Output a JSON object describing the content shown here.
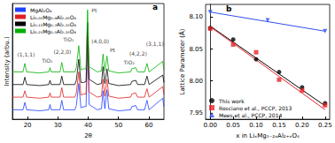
{
  "chart_data": [
    {
      "type": "line",
      "panel_label": "a",
      "x_label": "2θ",
      "y_label": "Intensity (arbu.)",
      "xlim": [
        15,
        65
      ],
      "xticks": [
        20,
        30,
        40,
        50,
        60
      ],
      "ylim": [
        0,
        110
      ],
      "tick_labels": "x",
      "grid": false,
      "legend": "upper left",
      "x": [
        15,
        18.5,
        19.1,
        19.7,
        24,
        27.0,
        27.4,
        27.8,
        30.7,
        31.3,
        31.9,
        35.6,
        36.1,
        36.9,
        37.6,
        38.6,
        39.3,
        39.8,
        40.3,
        43,
        44.4,
        44.9,
        45.5,
        46.2,
        46.8,
        50,
        54.0,
        54.4,
        55.7,
        56.3,
        58.6,
        59.4,
        60.1,
        64.6,
        65
      ],
      "series": [
        {
          "name": "MgAl₂O₄",
          "color": "#2040ff",
          "values": [
            9,
            9,
            16,
            9,
            8,
            9,
            14,
            9,
            9,
            18,
            9,
            9,
            13,
            34,
            11,
            12,
            12,
            70,
            14,
            9,
            10,
            27,
            10,
            28,
            10,
            8,
            9,
            12,
            13,
            9,
            9,
            18,
            9,
            20,
            12
          ]
        },
        {
          "name": "Li₀.₀₅Mg₀.₉Al₂.₀₅O₄",
          "color": "#e02020",
          "values": [
            21,
            21,
            27,
            21,
            20,
            21,
            25,
            21,
            21,
            30,
            21,
            21,
            25,
            45,
            23,
            24,
            24,
            80,
            26,
            21,
            22,
            38,
            22,
            38,
            22,
            20,
            21,
            24,
            25,
            21,
            21,
            29,
            21,
            31,
            24
          ]
        },
        {
          "name": "Li₀.₁₅Mg₀.₇Al₂.₁₅O₄",
          "color": "#000000",
          "values": [
            33,
            33,
            40,
            33,
            32,
            33,
            37,
            33,
            33,
            41,
            33,
            33,
            37,
            57,
            35,
            35,
            36,
            92,
            38,
            33,
            34,
            50,
            34,
            48,
            34,
            32,
            33,
            36,
            37,
            33,
            33,
            41,
            33,
            42,
            35
          ]
        },
        {
          "name": "Li₀.₂₅Mg₀.₅Al₂.₂₅O₄",
          "color": "#00b000",
          "values": [
            45,
            45,
            53,
            45,
            44,
            45,
            49,
            45,
            45,
            54,
            45,
            45,
            49,
            70,
            47,
            48,
            48,
            104,
            50,
            45,
            46,
            62,
            46,
            60,
            46,
            44,
            45,
            48,
            49,
            45,
            45,
            53,
            45,
            55,
            47
          ]
        }
      ],
      "annotations": [
        {
          "text": "(1,1,1)",
          "x": 19.5,
          "y": 62
        },
        {
          "text": "TiO₂",
          "x": 26.5,
          "y": 56
        },
        {
          "text": "(2,2,0)",
          "x": 31.5,
          "y": 64
        },
        {
          "text": "TiO₂",
          "x": 33.5,
          "y": 76
        },
        {
          "text": "Pt",
          "x": 42,
          "y": 104
        },
        {
          "text": "Pt",
          "x": 48,
          "y": 66
        },
        {
          "text": "(4,0,0)",
          "x": 44,
          "y": 74
        },
        {
          "text": "TiO₂",
          "x": 53.5,
          "y": 54
        },
        {
          "text": "(4,2,2)",
          "x": 56.5,
          "y": 63
        },
        {
          "text": "(3,1,1)",
          "x": 62,
          "y": 72
        }
      ]
    },
    {
      "type": "scatter",
      "panel_label": "b",
      "x_label": "x in LiₓMg₁₋₂ₓAl₂₊ₓO₄",
      "y_label": "Lattice Parameter (Å)",
      "xlim": [
        -0.01,
        0.26
      ],
      "xticks": [
        {
          "value": 0,
          "label": "0.00"
        },
        0.05,
        {
          "value": 0.1,
          "label": "0.10"
        },
        0.15,
        {
          "value": 0.2,
          "label": "0.20"
        },
        0.25
      ],
      "ylim": [
        7.94,
        8.12
      ],
      "yticks": [
        7.95,
        {
          "value": 8.0,
          "label": "8.00"
        },
        8.05,
        {
          "value": 8.1,
          "label": "8.10"
        }
      ],
      "grid": false,
      "legend": "lower left",
      "series": [
        {
          "name": "This work",
          "color": "#000000",
          "marker": "circle",
          "x": [
            0,
            0.05,
            0.1,
            0.15,
            0.2,
            0.25
          ],
          "values": [
            8.083,
            8.065,
            8.034,
            8.014,
            7.99,
            7.965
          ],
          "fit": {
            "x": [
              0,
              0.25
            ],
            "values": [
              8.086,
              7.961
            ]
          }
        },
        {
          "name": "Rosciano et al., PCCP, 2013",
          "color": "#e8242a",
          "marker": "square",
          "x": [
            0,
            0.05,
            0.1,
            0.15,
            0.2,
            0.25
          ],
          "values": [
            8.082,
            8.057,
            8.045,
            8.002,
            7.985,
            7.962
          ],
          "fit": {
            "x": [
              0,
              0.25
            ],
            "values": [
              8.085,
              7.955
            ]
          }
        },
        {
          "name": "Mees et al., PCCP, 2014",
          "color": "#3050f0",
          "marker": "triangle-down",
          "x": [
            0,
            0.125,
            0.25
          ],
          "values": [
            8.108,
            8.095,
            8.078
          ],
          "fit": {
            "x": [
              0,
              0.25
            ],
            "values": [
              8.108,
              8.078
            ]
          }
        }
      ]
    }
  ]
}
